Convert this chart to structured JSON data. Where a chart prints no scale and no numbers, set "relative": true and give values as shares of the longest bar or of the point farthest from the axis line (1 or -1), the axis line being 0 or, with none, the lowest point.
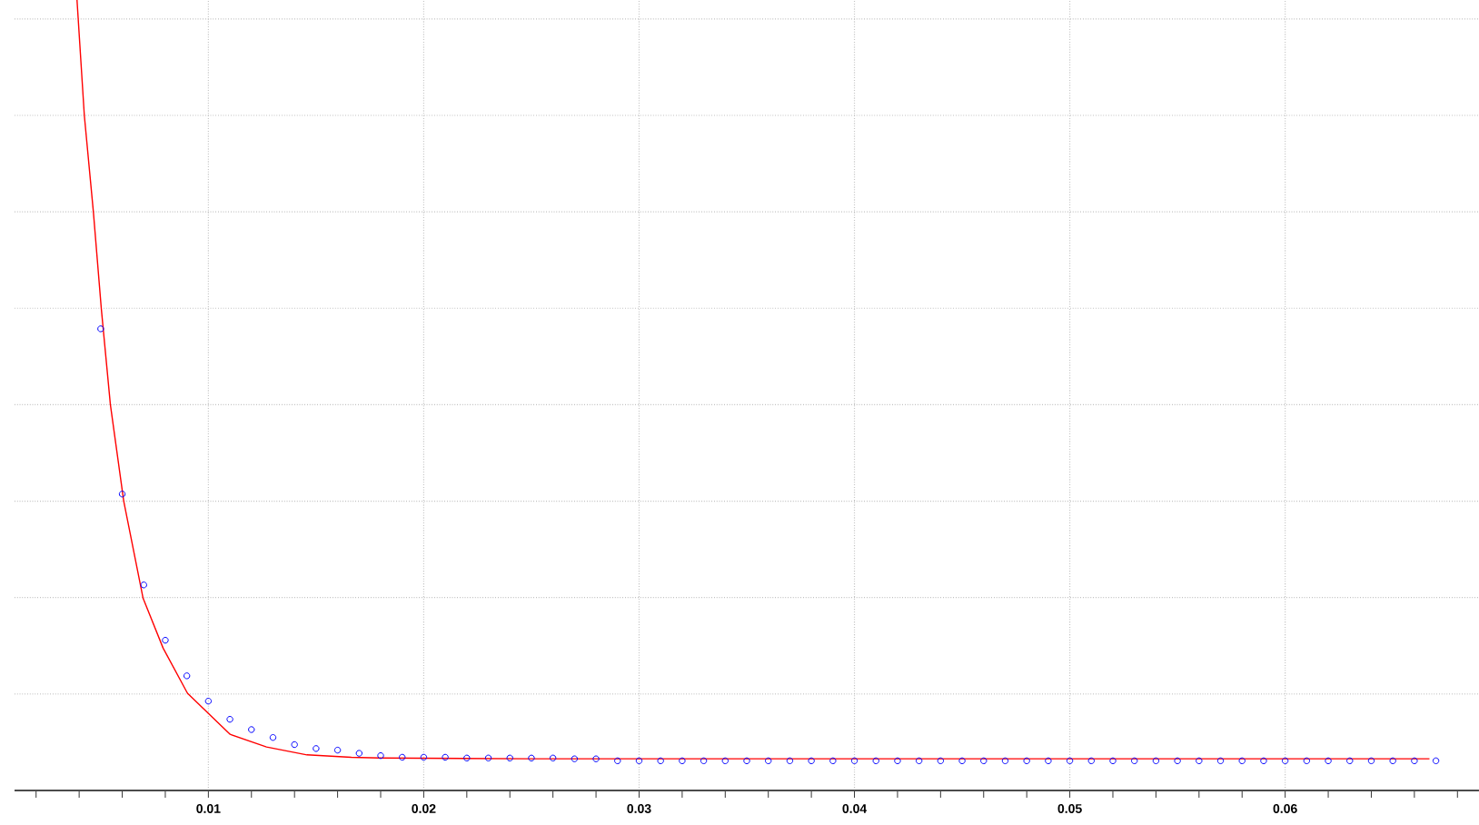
{
  "chart_data": {
    "type": "line",
    "relative": true,
    "grid": true,
    "xlim": [
      0.001,
      0.069
    ],
    "xticks": [
      {
        "value": 0.002,
        "label": null
      },
      {
        "value": 0.004,
        "label": null
      },
      {
        "value": 0.006,
        "label": null
      },
      {
        "value": 0.008,
        "label": null
      },
      0.01,
      {
        "value": 0.012,
        "label": null
      },
      {
        "value": 0.014,
        "label": null
      },
      {
        "value": 0.016,
        "label": null
      },
      {
        "value": 0.018,
        "label": null
      },
      0.02,
      {
        "value": 0.022,
        "label": null
      },
      {
        "value": 0.024,
        "label": null
      },
      {
        "value": 0.026,
        "label": null
      },
      {
        "value": 0.028,
        "label": null
      },
      0.03,
      {
        "value": 0.032,
        "label": null
      },
      {
        "value": 0.034,
        "label": null
      },
      {
        "value": 0.036,
        "label": null
      },
      {
        "value": 0.038,
        "label": null
      },
      0.04,
      {
        "value": 0.042,
        "label": null
      },
      {
        "value": 0.044,
        "label": null
      },
      {
        "value": 0.046,
        "label": null
      },
      {
        "value": 0.048,
        "label": null
      },
      0.05,
      {
        "value": 0.052,
        "label": null
      },
      {
        "value": 0.054,
        "label": null
      },
      {
        "value": 0.056,
        "label": null
      },
      {
        "value": 0.058,
        "label": null
      },
      0.06,
      {
        "value": 0.062,
        "label": null
      },
      {
        "value": 0.064,
        "label": null
      },
      {
        "value": 0.066,
        "label": null
      },
      {
        "value": 0.068,
        "label": null
      }
    ],
    "series": [
      {
        "color": "#ff0000",
        "marker": "none",
        "line_style": "solid",
        "x": [
          0.0039,
          0.00424,
          0.00466,
          0.00503,
          0.00545,
          0.00607,
          0.00697,
          0.0079,
          0.00903,
          0.01101,
          0.0127,
          0.01458,
          0.01664,
          0.018,
          0.025,
          0.0667
        ],
        "values": [
          1.0,
          0.854,
          0.732,
          0.609,
          0.488,
          0.366,
          0.243,
          0.18,
          0.123,
          0.071,
          0.055,
          0.045,
          0.042,
          0.041,
          0.04,
          0.04
        ]
      },
      {
        "type": "scatter",
        "color": "#0000ff",
        "marker": "circle",
        "x": [
          0.005,
          0.006,
          0.007,
          0.008,
          0.009,
          0.01,
          0.011,
          0.012,
          0.013,
          0.014,
          0.015,
          0.016,
          0.017,
          0.018,
          0.019,
          0.02,
          0.021,
          0.022,
          0.023,
          0.024,
          0.025,
          0.026,
          0.027,
          0.028,
          0.029,
          0.03,
          0.031,
          0.032,
          0.033,
          0.034,
          0.035,
          0.036,
          0.037,
          0.038,
          0.039,
          0.04,
          0.041,
          0.042,
          0.043,
          0.044,
          0.045,
          0.046,
          0.047,
          0.048,
          0.049,
          0.05,
          0.051,
          0.052,
          0.053,
          0.054,
          0.055,
          0.056,
          0.057,
          0.058,
          0.059,
          0.06,
          0.061,
          0.062,
          0.063,
          0.064,
          0.065,
          0.066,
          0.067
        ],
        "values": [
          0.584,
          0.375,
          0.26,
          0.19,
          0.145,
          0.113,
          0.09,
          0.077,
          0.067,
          0.058,
          0.053,
          0.051,
          0.047,
          0.044,
          0.042,
          0.042,
          0.042,
          0.041,
          0.041,
          0.041,
          0.041,
          0.041,
          0.04,
          0.04,
          0.0375,
          0.0375,
          0.0375,
          0.0375,
          0.0375,
          0.0375,
          0.0375,
          0.0375,
          0.0375,
          0.0375,
          0.0375,
          0.0375,
          0.0375,
          0.0375,
          0.0375,
          0.0375,
          0.0375,
          0.0375,
          0.0375,
          0.0375,
          0.0375,
          0.0375,
          0.0375,
          0.0375,
          0.0375,
          0.0375,
          0.0375,
          0.0375,
          0.0375,
          0.0375,
          0.0375,
          0.0375,
          0.0375,
          0.0375,
          0.0375,
          0.0375,
          0.0375,
          0.0375,
          0.0375
        ]
      }
    ]
  }
}
